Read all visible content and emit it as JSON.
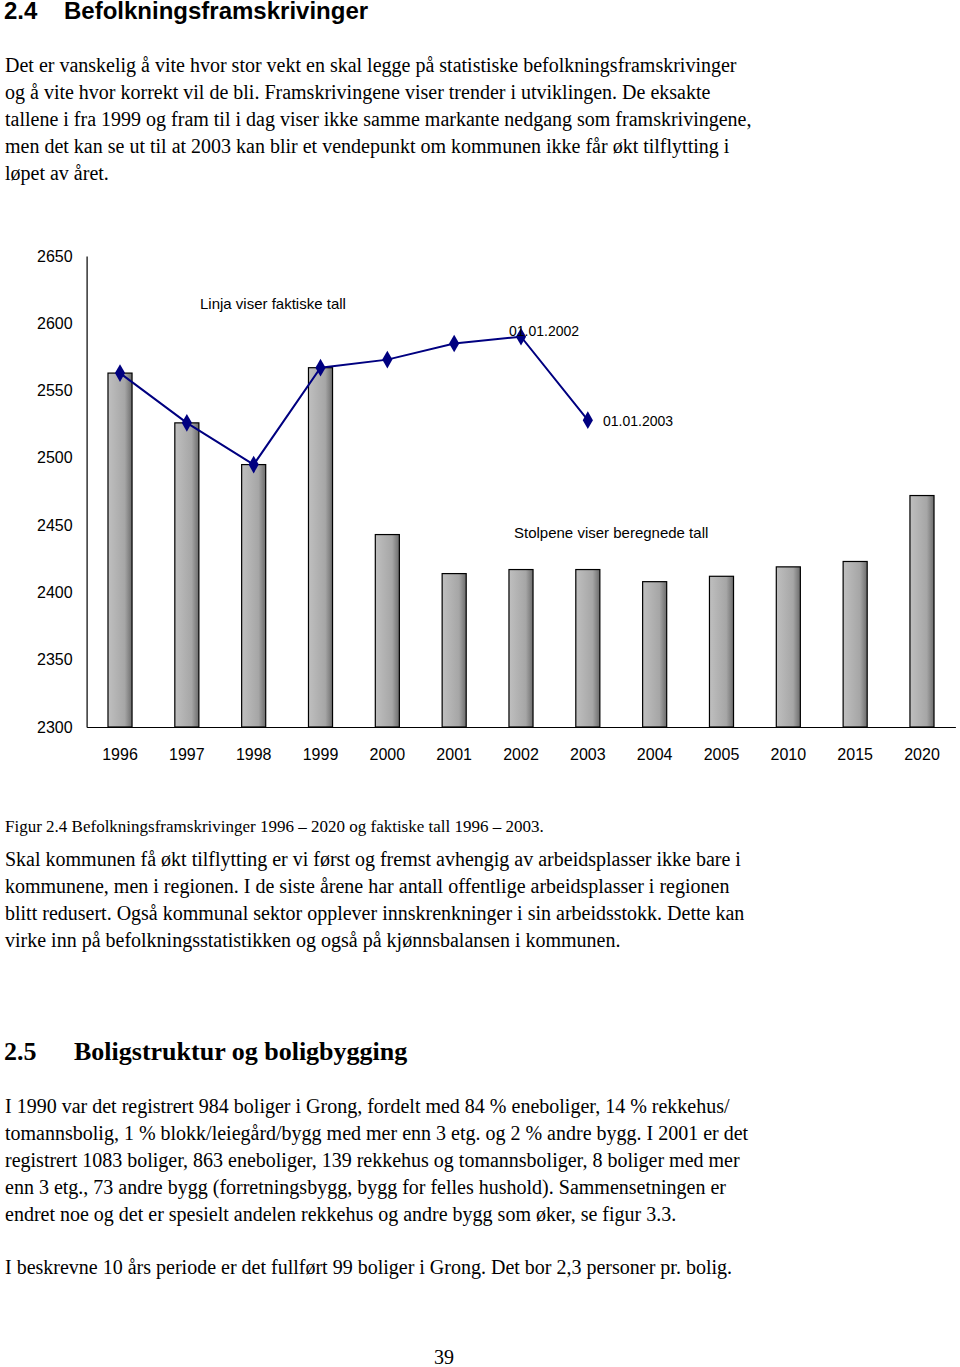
{
  "document": {
    "section_24": {
      "number": "2.4",
      "title": "Befolkningsframskrivinger"
    },
    "paragraph_1": [
      "Det er vanskelig å vite hvor stor vekt en skal legge på statistiske befolkningsframskrivinger",
      "og å vite hvor korrekt vil de bli. Framskrivingene viser trender i utviklingen. De eksakte",
      "tallene i fra 1999 og fram til i dag viser ikke samme markante nedgang som framskrivingene,",
      "men det kan se ut til at 2003 kan blir et vendepunkt om kommunen ikke får økt tilflytting i",
      "løpet av året."
    ],
    "figure_caption": "Figur 2.4 Befolkningsframskrivinger 1996 – 2020 og faktiske tall 1996 – 2003.",
    "paragraph_2": [
      "Skal kommunen få økt tilflytting er vi først og fremst avhengig av arbeidsplasser ikke bare i",
      "kommunene, men i regionen. I de siste årene har antall offentlige arbeidsplasser i regionen",
      "blitt redusert. Også kommunal sektor opplever innskrenkninger i sin arbeidsstokk. Dette kan",
      "virke inn på befolkningsstatistikken og også på kjønnsbalansen i kommunen."
    ],
    "section_25": {
      "number": "2.5",
      "title": "Boligstruktur og boligbygging"
    },
    "paragraph_3": [
      "I 1990 var det registrert 984 boliger i Grong, fordelt med 84 % eneboliger, 14 % rekkehus/",
      "tomannsbolig, 1 % blokk/leiegård/bygg med mer enn 3 etg. og 2 % andre bygg. I 2001 er det",
      "registrert 1083 boliger, 863 eneboliger, 139 rekkehus og tomannsboliger, 8 boliger med mer",
      "enn 3 etg., 73 andre bygg (forretningsbygg, bygg for felles hushold). Sammensetningen er",
      "endret noe og det er spesielt andelen rekkehus og andre bygg som øker, se figur 3.3."
    ],
    "paragraph_4": [
      "I beskrevne 10 års periode er det fullført 99 boliger i Grong. Det bor 2,3 personer pr. bolig."
    ],
    "page_number": "39"
  },
  "chart_data": {
    "type": "bar",
    "categories": [
      "1996",
      "1997",
      "1998",
      "1999",
      "2000",
      "2001",
      "2002",
      "2003",
      "2004",
      "2005",
      "2010",
      "2015",
      "2020"
    ],
    "series": [
      {
        "type": "bar",
        "color": "#a6a6a6",
        "values": [
          2563,
          2526,
          2495,
          2567,
          2443,
          2414,
          2417,
          2417,
          2408,
          2412,
          2419,
          2423,
          2472
        ]
      },
      {
        "type": "line",
        "color": "#000080",
        "marker": "diamond",
        "values": [
          2563,
          2526,
          2495,
          2567,
          2573,
          2585,
          2590,
          2528,
          null,
          null,
          null,
          null,
          null
        ]
      }
    ],
    "annotations": [
      "Linja viser faktiske tall",
      "01.01.2002",
      "01.01.2003",
      "Stolpene viser beregnede tall"
    ],
    "ylim": [
      2300,
      2650
    ],
    "yticks": [
      2300,
      2350,
      2400,
      2450,
      2500,
      2550,
      2600,
      2650
    ],
    "grid": false
  }
}
